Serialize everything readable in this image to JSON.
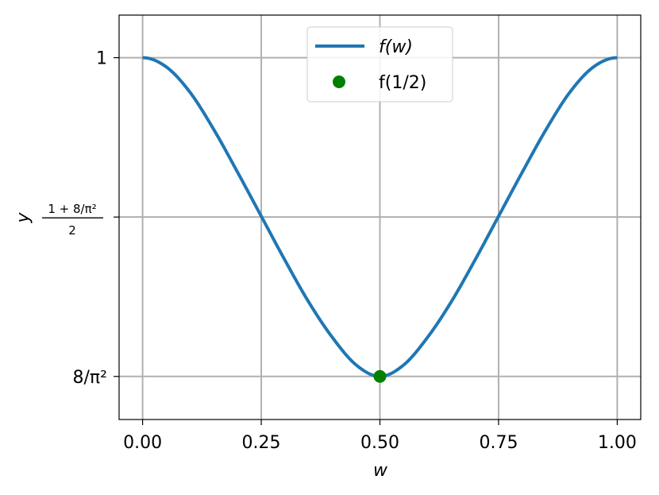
{
  "chart_data": {
    "type": "line",
    "title": "",
    "xlabel": "w",
    "ylabel": "y",
    "xlim": [
      -0.0495,
      1.0495
    ],
    "ylim": [
      0.785,
      1.0253
    ],
    "grid": true,
    "legend_position": "top-center",
    "x_ticks": [
      {
        "value": 0.0,
        "label": "0.00"
      },
      {
        "value": 0.25,
        "label": "0.25"
      },
      {
        "value": 0.5,
        "label": "0.50"
      },
      {
        "value": 0.75,
        "label": "0.75"
      },
      {
        "value": 1.0,
        "label": "1.00"
      }
    ],
    "y_ticks": [
      {
        "value": 0.8106,
        "label": "8/π²"
      },
      {
        "value": 0.9053,
        "label_numerator": "1 + 8/π²",
        "label_denominator": "2"
      },
      {
        "value": 1.0,
        "label": "1"
      }
    ],
    "series": [
      {
        "name": "f(w)",
        "kind": "line",
        "color": "#1f77b4",
        "x": [
          0.0,
          0.05,
          0.1,
          0.15,
          0.2,
          0.25,
          0.3,
          0.35,
          0.4,
          0.45,
          0.5,
          0.55,
          0.6,
          0.65,
          0.7,
          0.75,
          0.8,
          0.85,
          0.9,
          0.95,
          1.0
        ],
        "y": [
          1.0,
          0.9945,
          0.9794,
          0.9573,
          0.932,
          0.9058,
          0.8796,
          0.8548,
          0.8337,
          0.8174,
          0.8106,
          0.8174,
          0.8337,
          0.8548,
          0.8796,
          0.9058,
          0.932,
          0.9573,
          0.9794,
          0.9945,
          1.0
        ]
      },
      {
        "name": "f(1/2)",
        "kind": "scatter",
        "color": "#008000",
        "x": [
          0.5
        ],
        "y": [
          0.8106
        ]
      }
    ]
  }
}
